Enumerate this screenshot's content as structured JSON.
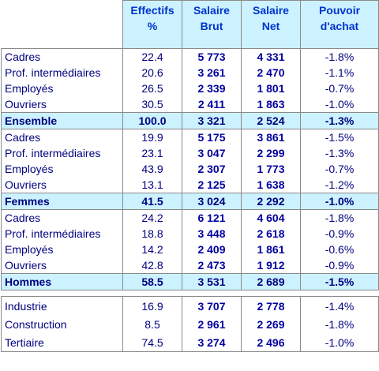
{
  "header": {
    "columns": [
      "Effectifs\n%",
      "Salaire\nBrut",
      "Salaire\nNet",
      "Pouvoir\nd'achat"
    ]
  },
  "groups": [
    {
      "rows": [
        [
          "Cadres",
          "22.4",
          "5 773",
          "4 331",
          "-1.8%"
        ],
        [
          "Prof. intermédiaires",
          "20.6",
          "3 261",
          "2 470",
          "-1.1%"
        ],
        [
          "Employés",
          "26.5",
          "2 339",
          "1 801",
          "-0.7%"
        ],
        [
          "Ouvriers",
          "30.5",
          "2 411",
          "1 863",
          "-1.0%"
        ]
      ],
      "total": [
        "Ensemble",
        "100.0",
        "3 321",
        "2 524",
        "-1.3%"
      ]
    },
    {
      "rows": [
        [
          "Cadres",
          "19.9",
          "5 175",
          "3 861",
          "-1.5%"
        ],
        [
          "Prof. intermédiaires",
          "23.1",
          "3 047",
          "2 299",
          "-1.3%"
        ],
        [
          "Employés",
          "43.9",
          "2 307",
          "1 773",
          "-0.7%"
        ],
        [
          "Ouvriers",
          "13.1",
          "2 125",
          "1 638",
          "-1.2%"
        ]
      ],
      "total": [
        "Femmes",
        "41.5",
        "3 024",
        "2 292",
        "-1.0%"
      ]
    },
    {
      "rows": [
        [
          "Cadres",
          "24.2",
          "6 121",
          "4 604",
          "-1.8%"
        ],
        [
          "Prof. intermédiaires",
          "18.8",
          "3 448",
          "2 618",
          "-0.9%"
        ],
        [
          "Employés",
          "14.2",
          "2 409",
          "1 861",
          "-0.6%"
        ],
        [
          "Ouvriers",
          "42.8",
          "2 473",
          "1 912",
          "-0.9%"
        ]
      ],
      "total": [
        "Hommes",
        "58.5",
        "3 531",
        "2 689",
        "-1.5%"
      ]
    }
  ],
  "sectors": {
    "rows": [
      [
        "Industrie",
        "16.9",
        "3 707",
        "2 778",
        "-1.4%"
      ],
      [
        "Construction",
        "8.5",
        "2 961",
        "2 269",
        "-1.8%"
      ],
      [
        "Tertiaire",
        "74.5",
        "3 274",
        "2 496",
        "-1.0%"
      ]
    ]
  }
}
